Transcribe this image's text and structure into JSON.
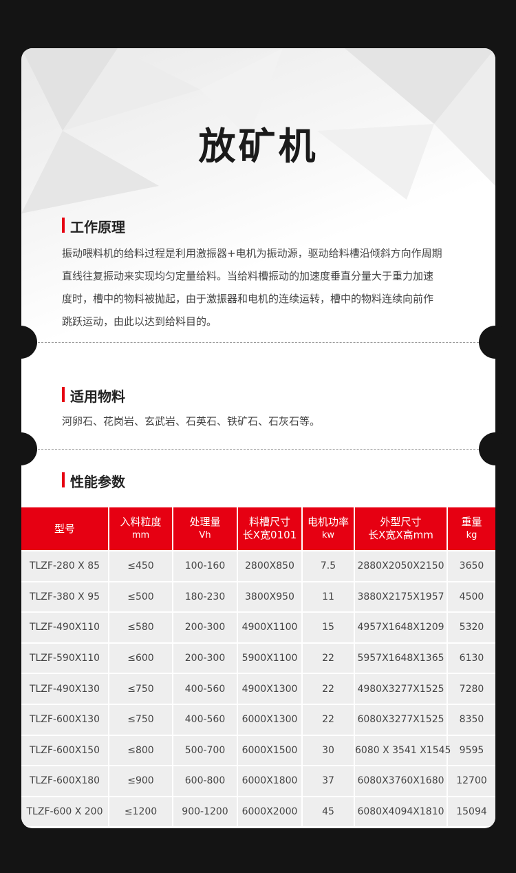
{
  "title": "放矿机",
  "sections": {
    "principle": {
      "heading": "工作原理",
      "lines": [
        "振动喂料机的给料过程是利用激振器+电机为振动源，驱动给料槽沿倾斜方向作周期",
        "直线往复振动来实现均匀定量给料。当给料槽振动的加速度垂直分量大于重力加速",
        "度时，槽中的物料被抛起，由于激振器和电机的连续运转，槽中的物料连续向前作",
        "跳跃运动，由此以达到给料目的。"
      ]
    },
    "materials": {
      "heading": "适用物料",
      "text": "河卵石、花岗岩、玄武岩、石英石、铁矿石、石灰石等。"
    },
    "params": {
      "heading": "性能参数"
    }
  },
  "table": {
    "headers": [
      [
        "型号",
        ""
      ],
      [
        "入料粒度",
        "mm"
      ],
      [
        "处理量",
        "Vh"
      ],
      [
        "料槽尺寸",
        "长X宽0101"
      ],
      [
        "电机功率",
        "kw"
      ],
      [
        "外型尺寸",
        "长X宽X高mm"
      ],
      [
        "重量",
        "kg"
      ]
    ],
    "rows": [
      [
        "TLZF-280 X 85",
        "≤450",
        "100-160",
        "2800X850",
        "7.5",
        "2880X2050X2150",
        "3650"
      ],
      [
        "TLZF-380 X 95",
        "≤500",
        "180-230",
        "3800X950",
        "11",
        "3880X2175X1957",
        "4500"
      ],
      [
        "TLZF-490X110",
        "≤580",
        "200-300",
        "4900X1100",
        "15",
        "4957X1648X1209",
        "5320"
      ],
      [
        "TLZF-590X110",
        "≤600",
        "200-300",
        "5900X1100",
        "22",
        "5957X1648X1365",
        "6130"
      ],
      [
        "TLZF-490X130",
        "≤750",
        "400-560",
        "4900X1300",
        "22",
        "4980X3277X1525",
        "7280"
      ],
      [
        "TLZF-600X130",
        "≤750",
        "400-560",
        "6000X1300",
        "22",
        "6080X3277X1525",
        "8350"
      ],
      [
        "TLZF-600X150",
        "≤800",
        "500-700",
        "6000X1500",
        "30",
        "6080 X 3541 X1545",
        "9595"
      ],
      [
        "TLZF-600X180",
        "≤900",
        "600-800",
        "6000X1800",
        "37",
        "6080X3760X1680",
        "12700"
      ],
      [
        "TLZF-600 X 200",
        "≤1200",
        "900-1200",
        "6000X2000",
        "45",
        "6080X4094X1810",
        "15094"
      ]
    ]
  },
  "colors": {
    "accent": "#e60012",
    "background": "#141414",
    "cell": "#eeeeee"
  }
}
